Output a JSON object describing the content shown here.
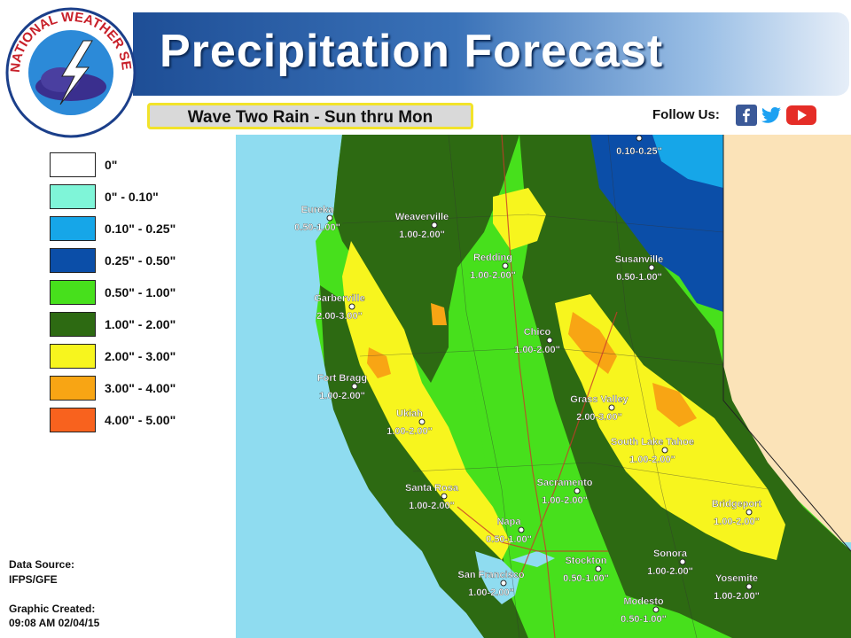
{
  "header": {
    "title": "Precipitation Forecast",
    "subtitle": "Wave Two Rain - Sun thru Mon",
    "follow_label": "Follow Us:",
    "logo_text": "NATIONAL WEATHER SERVICE"
  },
  "social_icons": [
    "facebook-icon",
    "twitter-icon",
    "youtube-icon"
  ],
  "legend": [
    {
      "label": "0\"",
      "color": "#ffffff"
    },
    {
      "label": "0\" - 0.10\"",
      "color": "#7ff5d8"
    },
    {
      "label": "0.10\" - 0.25\"",
      "color": "#16a6e8"
    },
    {
      "label": "0.25\" - 0.50\"",
      "color": "#0b4ea8"
    },
    {
      "label": "0.50\" - 1.00\"",
      "color": "#47e01c"
    },
    {
      "label": "1.00\" - 2.00\"",
      "color": "#2d6a12"
    },
    {
      "label": "2.00\" - 3.00\"",
      "color": "#f7f51e"
    },
    {
      "label": "3.00\" - 4.00\"",
      "color": "#f8a514"
    },
    {
      "label": "4.00\" - 5.00\"",
      "color": "#f8621e"
    }
  ],
  "source": {
    "data_source_label": "Data Source:",
    "data_source_value": "IFPS/GFE",
    "created_label": "Graphic Created:",
    "created_value": "09:08 AM 02/04/15"
  },
  "cities": [
    {
      "name": "Eureka",
      "amount": "0.50-1.00\""
    },
    {
      "name": "Weaverville",
      "amount": "1.00-2.00\""
    },
    {
      "name": "Redding",
      "amount": "1.00-2.00\""
    },
    {
      "name": "Susanville",
      "amount": "0.50-1.00\""
    },
    {
      "name": "Garberville",
      "amount": "2.00-3.00\""
    },
    {
      "name": "Chico",
      "amount": "1.00-2.00\""
    },
    {
      "name": "Fort Bragg",
      "amount": "1.00-2.00\""
    },
    {
      "name": "Grass Valley",
      "amount": "2.00-3.00\""
    },
    {
      "name": "Ukiah",
      "amount": "1.00-2.00\""
    },
    {
      "name": "South Lake Tahoe",
      "amount": "1.00-2.00\""
    },
    {
      "name": "Santa Rosa",
      "amount": "1.00-2.00\""
    },
    {
      "name": "Sacramento",
      "amount": "1.00-2.00\""
    },
    {
      "name": "Bridgeport",
      "amount": "1.00-2.00\""
    },
    {
      "name": "Napa",
      "amount": "0.50-1.00\""
    },
    {
      "name": "Sonora",
      "amount": "1.00-2.00\""
    },
    {
      "name": "Stockton",
      "amount": "0.50-1.00\""
    },
    {
      "name": "San Francisco",
      "amount": "1.00-2.00\""
    },
    {
      "name": "Yosemite",
      "amount": "1.00-2.00\""
    },
    {
      "name": "Modesto",
      "amount": "0.50-1.00\""
    },
    {
      "name": "",
      "amount": "0.10-0.25\""
    }
  ]
}
